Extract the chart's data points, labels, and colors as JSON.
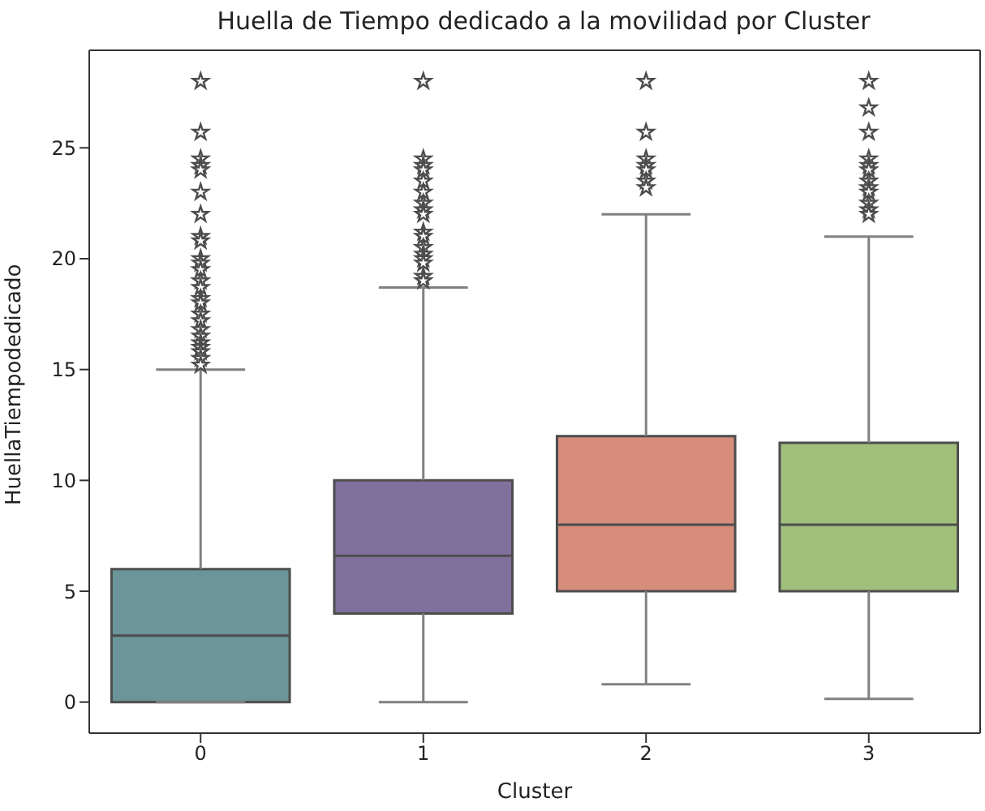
{
  "chart_data": {
    "type": "box",
    "title": "Huella de Tiempo dedicado a la movilidad por Cluster",
    "xlabel": "Cluster",
    "ylabel": "HuellaTiempodedicado",
    "categories": [
      "0",
      "1",
      "2",
      "3"
    ],
    "colors": [
      "#6b9598",
      "#80709c",
      "#d68d7c",
      "#a0c07c"
    ],
    "boxes": [
      {
        "low": 0,
        "q1": 0,
        "median": 3,
        "q3": 6,
        "high": 15,
        "outliers": [
          28,
          25.7,
          24.5,
          24.2,
          24,
          23,
          22,
          21,
          20.8,
          20,
          19.8,
          19.5,
          19,
          18.7,
          18.2,
          18,
          17.5,
          17.2,
          16.8,
          16.5,
          16.2,
          16,
          15.8,
          15.5,
          15.2
        ]
      },
      {
        "low": 0,
        "q1": 4,
        "median": 6.6,
        "q3": 10,
        "high": 18.7,
        "outliers": [
          28,
          24.5,
          24.2,
          24,
          23.5,
          23,
          22.5,
          22.2,
          22,
          21.2,
          21,
          20.5,
          20.2,
          20,
          19.8,
          19.2,
          19
        ]
      },
      {
        "low": 0.8,
        "q1": 5,
        "median": 8,
        "q3": 12,
        "high": 22,
        "outliers": [
          28,
          25.7,
          24.5,
          24.2,
          24,
          23.5,
          23.2
        ]
      },
      {
        "low": 0.15,
        "q1": 5,
        "median": 8,
        "q3": 11.7,
        "high": 21,
        "outliers": [
          28,
          26.8,
          25.7,
          24.5,
          24.2,
          24,
          23.5,
          23.2,
          23,
          22.5,
          22.2,
          22
        ]
      }
    ],
    "ylim": [
      -1.4,
      29.4
    ],
    "yticks": [
      0,
      5,
      10,
      15,
      20,
      25
    ],
    "marker": "star",
    "grid": false
  }
}
